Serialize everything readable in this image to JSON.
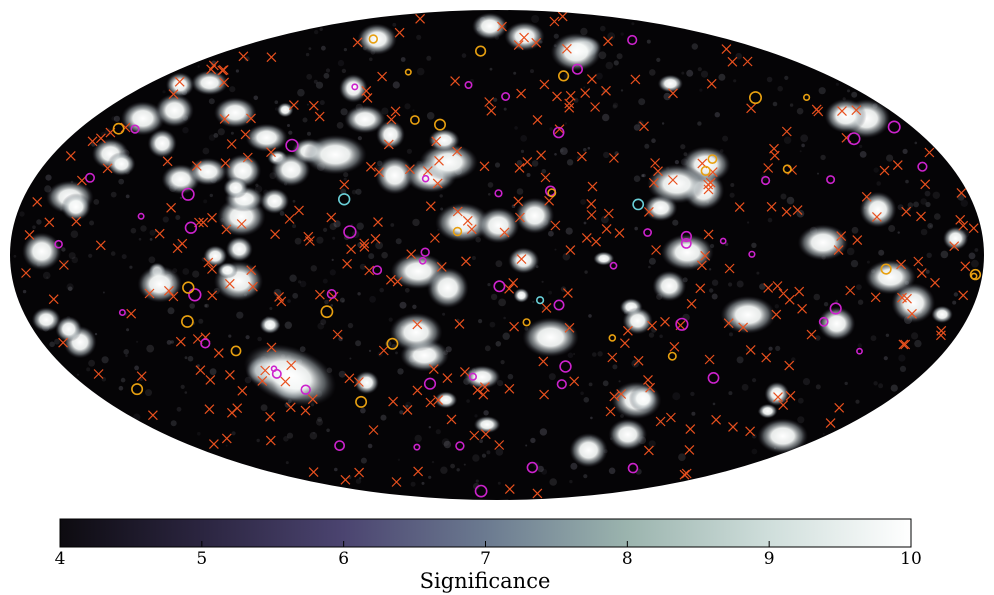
{
  "chart_data": {
    "type": "heatmap",
    "title": "",
    "projection": "mollweide",
    "colorbar": {
      "label": "Significance",
      "range": [
        4,
        10
      ],
      "ticks": [
        4,
        5,
        6,
        7,
        8,
        9,
        10
      ],
      "tick_labels": [
        "4",
        "5",
        "6",
        "7",
        "8",
        "9",
        "10"
      ],
      "colors": [
        "#0d0b10",
        "#2b2540",
        "#4b4470",
        "#6b7a90",
        "#9bb4ae",
        "#cfdedb",
        "#ffffff"
      ],
      "orientation": "horizontal",
      "placement": "bottom"
    },
    "marker_legend": [
      {
        "marker": "x",
        "color": "#e8501e"
      },
      {
        "marker": "circle",
        "color": "#cc22cc"
      },
      {
        "marker": "circle",
        "color": "#e8a010"
      },
      {
        "marker": "circle",
        "color": "#6ad0d8"
      }
    ]
  }
}
